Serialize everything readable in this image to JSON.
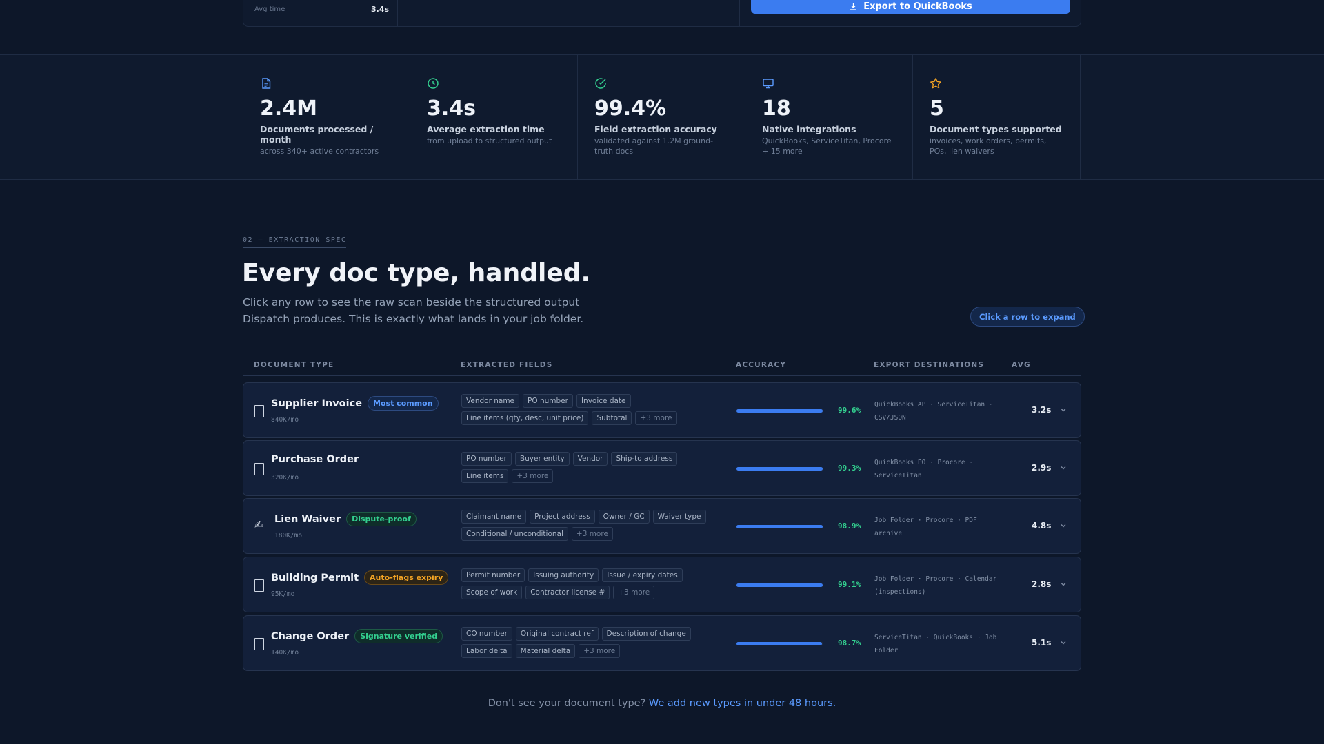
{
  "top": {
    "avg_label": "Avg time",
    "avg_value": "3.4s",
    "export_button": "Export to QuickBooks"
  },
  "stats": [
    {
      "icon": "document-icon",
      "color": "#5b9bff",
      "value": "2.4M",
      "label": "Documents processed / month",
      "sub": "across 340+ active contractors"
    },
    {
      "icon": "clock-icon",
      "color": "#33cf8f",
      "value": "3.4s",
      "label": "Average extraction time",
      "sub": "from upload to structured output"
    },
    {
      "icon": "check-circle-icon",
      "color": "#33cf8f",
      "value": "99.4%",
      "label": "Field extraction accuracy",
      "sub": "validated against 1.2M ground-truth docs"
    },
    {
      "icon": "monitor-icon",
      "color": "#5b9bff",
      "value": "18",
      "label": "Native integrations",
      "sub": "QuickBooks, ServiceTitan, Procore + 15 more"
    },
    {
      "icon": "star-icon",
      "color": "#f5a524",
      "value": "5",
      "label": "Document types supported",
      "sub": "invoices, work orders, permits, POs, lien waivers"
    }
  ],
  "section": {
    "eyebrow": "02 — EXTRACTION SPEC",
    "title": "Every doc type, handled.",
    "lead": "Click any row to see the raw scan beside the structured output Dispatch produces. This is exactly what lands in your job folder.",
    "hint": "Click a row to expand"
  },
  "table": {
    "headers": {
      "doc_type": "DOCUMENT TYPE",
      "fields": "EXTRACTED FIELDS",
      "accuracy": "ACCURACY",
      "export": "EXPORT DESTINATIONS",
      "avg": "AVG"
    },
    "rows": [
      {
        "name": "Supplier Invoice",
        "badge": "Most common",
        "badge_style": "blue",
        "volume": "840K/mo",
        "fields": [
          "Vendor name",
          "PO number",
          "Invoice date",
          "Line items (qty, desc, unit price)",
          "Subtotal"
        ],
        "more": "+3 more",
        "accuracy_pct": 99.6,
        "accuracy": "99.6%",
        "destinations": "QuickBooks AP · ServiceTitan · CSV/JSON",
        "avg": "3.2s"
      },
      {
        "name": "Purchase Order",
        "badge": "",
        "badge_style": "",
        "volume": "320K/mo",
        "fields": [
          "PO number",
          "Buyer entity",
          "Vendor",
          "Ship-to address",
          "Line items"
        ],
        "more": "+3 more",
        "accuracy_pct": 99.3,
        "accuracy": "99.3%",
        "destinations": "QuickBooks PO · Procore · ServiceTitan",
        "avg": "2.9s"
      },
      {
        "name": "Lien Waiver",
        "badge": "Dispute-proof",
        "badge_style": "green",
        "volume": "180K/mo",
        "fields": [
          "Claimant name",
          "Project address",
          "Owner / GC",
          "Waiver type",
          "Conditional / unconditional"
        ],
        "more": "+3 more",
        "accuracy_pct": 98.9,
        "accuracy": "98.9%",
        "destinations": "Job Folder · Procore · PDF archive",
        "avg": "4.8s"
      },
      {
        "name": "Building Permit",
        "badge": "Auto-flags expiry",
        "badge_style": "amber",
        "volume": "95K/mo",
        "fields": [
          "Permit number",
          "Issuing authority",
          "Issue / expiry dates",
          "Scope of work",
          "Contractor license #"
        ],
        "more": "+3 more",
        "accuracy_pct": 99.1,
        "accuracy": "99.1%",
        "destinations": "Job Folder · Procore · Calendar (inspections)",
        "avg": "2.8s"
      },
      {
        "name": "Change Order",
        "badge": "Signature verified",
        "badge_style": "green",
        "volume": "140K/mo",
        "fields": [
          "CO number",
          "Original contract ref",
          "Description of change",
          "Labor delta",
          "Material delta"
        ],
        "more": "+3 more",
        "accuracy_pct": 98.7,
        "accuracy": "98.7%",
        "destinations": "ServiceTitan · QuickBooks · Job Folder",
        "avg": "5.1s"
      }
    ]
  },
  "footer": {
    "question": "Don't see your document type?",
    "link": "We add new types in under 48 hours."
  }
}
